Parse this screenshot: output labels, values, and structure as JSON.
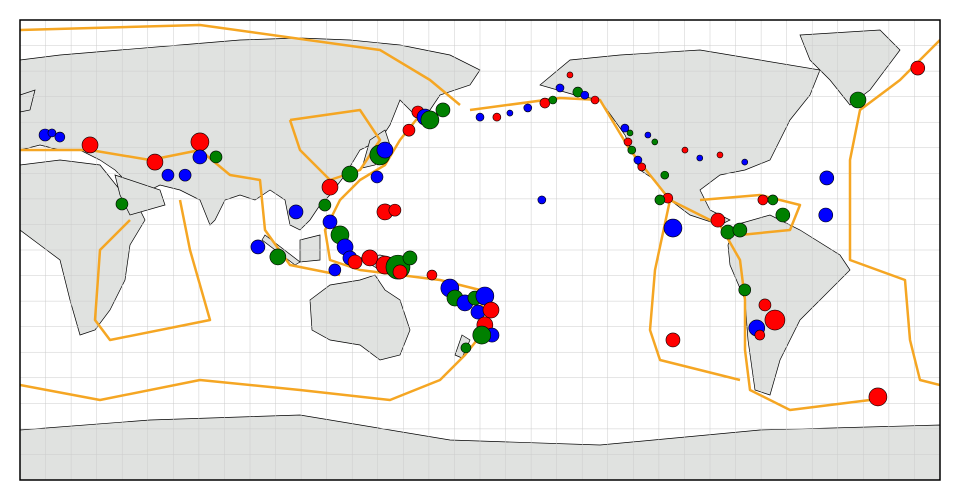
{
  "quakes": [
    {
      "lon": 9.8,
      "lat": 45.0,
      "mag": 5.9,
      "color": "blue"
    },
    {
      "lon": 15.6,
      "lat": 44.2,
      "mag": 5.5,
      "color": "blue"
    },
    {
      "lon": 12.5,
      "lat": 45.8,
      "mag": 5.1,
      "color": "blue"
    },
    {
      "lon": 27.4,
      "lat": 41.1,
      "mag": 6.7,
      "color": "red"
    },
    {
      "lon": 52.8,
      "lat": 34.4,
      "mag": 6.7,
      "color": "red"
    },
    {
      "lon": 70.4,
      "lat": 42.3,
      "mag": 7.1,
      "color": "red"
    },
    {
      "lon": 70.4,
      "lat": 36.4,
      "mag": 6.3,
      "color": "blue"
    },
    {
      "lon": 76.7,
      "lat": 36.4,
      "mag": 5.9,
      "color": "green"
    },
    {
      "lon": 64.6,
      "lat": 29.3,
      "mag": 5.9,
      "color": "blue"
    },
    {
      "lon": 57.9,
      "lat": 29.3,
      "mag": 5.9,
      "color": "blue"
    },
    {
      "lon": 39.9,
      "lat": 18.0,
      "mag": 5.9,
      "color": "green"
    },
    {
      "lon": 93.1,
      "lat": 1.2,
      "mag": 6.3,
      "color": "blue"
    },
    {
      "lon": 100.9,
      "lat": -2.7,
      "mag": 6.7,
      "color": "green"
    },
    {
      "lon": 108.0,
      "lat": 14.9,
      "mag": 6.3,
      "color": "blue"
    },
    {
      "lon": 121.3,
      "lat": 24.6,
      "mag": 6.7,
      "color": "red"
    },
    {
      "lon": 129.1,
      "lat": 29.7,
      "mag": 6.7,
      "color": "green"
    },
    {
      "lon": 139.7,
      "lat": 28.6,
      "mag": 5.9,
      "color": "blue"
    },
    {
      "lon": 140.8,
      "lat": 37.2,
      "mag": 7.5,
      "color": "green"
    },
    {
      "lon": 142.8,
      "lat": 39.1,
      "mag": 6.7,
      "color": "blue"
    },
    {
      "lon": 152.2,
      "lat": 46.9,
      "mag": 5.9,
      "color": "red"
    },
    {
      "lon": 155.7,
      "lat": 54.0,
      "mag": 5.9,
      "color": "red"
    },
    {
      "lon": 158.5,
      "lat": 52.0,
      "mag": 6.7,
      "color": "blue"
    },
    {
      "lon": 160.4,
      "lat": 50.9,
      "mag": 7.1,
      "color": "green"
    },
    {
      "lon": 165.5,
      "lat": 54.8,
      "mag": 6.3,
      "color": "green"
    },
    {
      "lon": 119.3,
      "lat": 17.6,
      "mag": 5.9,
      "color": "green"
    },
    {
      "lon": 121.3,
      "lat": 11.0,
      "mag": 6.3,
      "color": "blue"
    },
    {
      "lon": 125.2,
      "lat": 5.9,
      "mag": 7.1,
      "color": "green"
    },
    {
      "lon": 127.2,
      "lat": 1.2,
      "mag": 6.7,
      "color": "blue"
    },
    {
      "lon": 129.1,
      "lat": -3.1,
      "mag": 6.3,
      "color": "blue"
    },
    {
      "lon": 131.1,
      "lat": -4.7,
      "mag": 6.3,
      "color": "red"
    },
    {
      "lon": 123.2,
      "lat": -7.8,
      "mag": 5.9,
      "color": "blue"
    },
    {
      "lon": 142.8,
      "lat": 14.9,
      "mag": 6.7,
      "color": "red"
    },
    {
      "lon": 146.7,
      "lat": 15.6,
      "mag": 5.9,
      "color": "red"
    },
    {
      "lon": 136.9,
      "lat": -3.1,
      "mag": 6.7,
      "color": "red"
    },
    {
      "lon": 142.8,
      "lat": -5.9,
      "mag": 7.1,
      "color": "red"
    },
    {
      "lon": 147.9,
      "lat": -6.7,
      "mag": 8.3,
      "color": "green"
    },
    {
      "lon": 152.6,
      "lat": -3.1,
      "mag": 6.3,
      "color": "green"
    },
    {
      "lon": 148.7,
      "lat": -8.6,
      "mag": 6.3,
      "color": "red"
    },
    {
      "lon": 161.2,
      "lat": -9.8,
      "mag": 5.5,
      "color": "red"
    },
    {
      "lon": 168.2,
      "lat": -14.9,
      "mag": 7.1,
      "color": "blue"
    },
    {
      "lon": 170.2,
      "lat": -18.8,
      "mag": 6.7,
      "color": "green"
    },
    {
      "lon": 174.1,
      "lat": -20.7,
      "mag": 6.7,
      "color": "blue"
    },
    {
      "lon": 178.0,
      "lat": -18.8,
      "mag": 6.3,
      "color": "green"
    },
    {
      "lon": -178.1,
      "lat": -18.0,
      "mag": 7.1,
      "color": "blue"
    },
    {
      "lon": 179.2,
      "lat": -24.3,
      "mag": 6.3,
      "color": "blue"
    },
    {
      "lon": -175.7,
      "lat": -23.5,
      "mag": 6.7,
      "color": "red"
    },
    {
      "lon": -178.1,
      "lat": -29.3,
      "mag": 6.7,
      "color": "red"
    },
    {
      "lon": -175.3,
      "lat": -33.3,
      "mag": 6.3,
      "color": "blue"
    },
    {
      "lon": -179.3,
      "lat": -33.3,
      "mag": 7.1,
      "color": "green"
    },
    {
      "lon": 174.5,
      "lat": -38.3,
      "mag": 5.5,
      "color": "green"
    },
    {
      "lon": 180.0,
      "lat": 52.0,
      "mag": 5.1,
      "color": "blue"
    },
    {
      "lon": -173.4,
      "lat": 52.0,
      "mag": 5.1,
      "color": "red"
    },
    {
      "lon": -168.3,
      "lat": 53.6,
      "mag": 4.7,
      "color": "blue"
    },
    {
      "lon": -161.3,
      "lat": 55.6,
      "mag": 5.1,
      "color": "blue"
    },
    {
      "lon": -154.6,
      "lat": 57.5,
      "mag": 5.5,
      "color": "red"
    },
    {
      "lon": -151.5,
      "lat": 58.7,
      "mag": 5.1,
      "color": "green"
    },
    {
      "lon": -148.7,
      "lat": 63.4,
      "mag": 5.1,
      "color": "blue"
    },
    {
      "lon": -144.8,
      "lat": 68.5,
      "mag": 4.7,
      "color": "red"
    },
    {
      "lon": -141.7,
      "lat": 61.8,
      "mag": 5.5,
      "color": "green"
    },
    {
      "lon": -139.0,
      "lat": 60.6,
      "mag": 5.1,
      "color": "blue"
    },
    {
      "lon": -135.0,
      "lat": 58.7,
      "mag": 5.1,
      "color": "red"
    },
    {
      "lon": -123.3,
      "lat": 47.7,
      "mag": 5.1,
      "color": "blue"
    },
    {
      "lon": -121.3,
      "lat": 45.8,
      "mag": 4.7,
      "color": "green"
    },
    {
      "lon": -122.1,
      "lat": 42.3,
      "mag": 5.1,
      "color": "red"
    },
    {
      "lon": -120.6,
      "lat": 39.1,
      "mag": 5.1,
      "color": "green"
    },
    {
      "lon": -118.2,
      "lat": 35.2,
      "mag": 5.1,
      "color": "blue"
    },
    {
      "lon": -116.7,
      "lat": 32.5,
      "mag": 5.1,
      "color": "red"
    },
    {
      "lon": -114.3,
      "lat": 45.0,
      "mag": 4.7,
      "color": "blue"
    },
    {
      "lon": -111.6,
      "lat": 42.3,
      "mag": 4.7,
      "color": "green"
    },
    {
      "lon": -99.8,
      "lat": 39.1,
      "mag": 4.7,
      "color": "red"
    },
    {
      "lon": -94.0,
      "lat": 36.0,
      "mag": 4.7,
      "color": "blue"
    },
    {
      "lon": -86.1,
      "lat": 37.2,
      "mag": 4.7,
      "color": "red"
    },
    {
      "lon": -76.4,
      "lat": 34.4,
      "mag": 4.7,
      "color": "blue"
    },
    {
      "lon": -107.7,
      "lat": 29.3,
      "mag": 5.1,
      "color": "green"
    },
    {
      "lon": -106.5,
      "lat": 20.3,
      "mag": 5.5,
      "color": "red"
    },
    {
      "lon": -109.6,
      "lat": 19.6,
      "mag": 5.5,
      "color": "green"
    },
    {
      "lon": -104.5,
      "lat": 8.6,
      "mag": 7.1,
      "color": "blue"
    },
    {
      "lon": -86.9,
      "lat": 11.7,
      "mag": 6.3,
      "color": "red"
    },
    {
      "lon": -83.0,
      "lat": 7.0,
      "mag": 6.3,
      "color": "green"
    },
    {
      "lon": -78.3,
      "lat": 7.8,
      "mag": 6.3,
      "color": "green"
    },
    {
      "lon": -69.3,
      "lat": 19.6,
      "mag": 5.5,
      "color": "red"
    },
    {
      "lon": -65.4,
      "lat": 19.6,
      "mag": 5.5,
      "color": "green"
    },
    {
      "lon": -61.5,
      "lat": 13.7,
      "mag": 6.3,
      "color": "green"
    },
    {
      "lon": -44.3,
      "lat": 28.2,
      "mag": 6.3,
      "color": "blue"
    },
    {
      "lon": -44.7,
      "lat": 13.7,
      "mag": 6.3,
      "color": "blue"
    },
    {
      "lon": -76.4,
      "lat": -15.6,
      "mag": 5.9,
      "color": "green"
    },
    {
      "lon": -68.5,
      "lat": -21.5,
      "mag": 5.9,
      "color": "red"
    },
    {
      "lon": -64.6,
      "lat": -27.4,
      "mag": 7.5,
      "color": "red"
    },
    {
      "lon": -71.7,
      "lat": -30.5,
      "mag": 6.7,
      "color": "blue"
    },
    {
      "lon": -70.5,
      "lat": -33.3,
      "mag": 5.5,
      "color": "red"
    },
    {
      "lon": -104.5,
      "lat": -35.2,
      "mag": 6.3,
      "color": "red"
    },
    {
      "lon": -24.3,
      "lat": -57.5,
      "mag": 7.1,
      "color": "red"
    },
    {
      "lon": -32.1,
      "lat": 58.7,
      "mag": 6.7,
      "color": "green"
    },
    {
      "lon": -8.7,
      "lat": 71.2,
      "mag": 6.3,
      "color": "red"
    },
    {
      "lon": -155.8,
      "lat": 19.6,
      "mag": 5.1,
      "color": "blue"
    }
  ]
}
